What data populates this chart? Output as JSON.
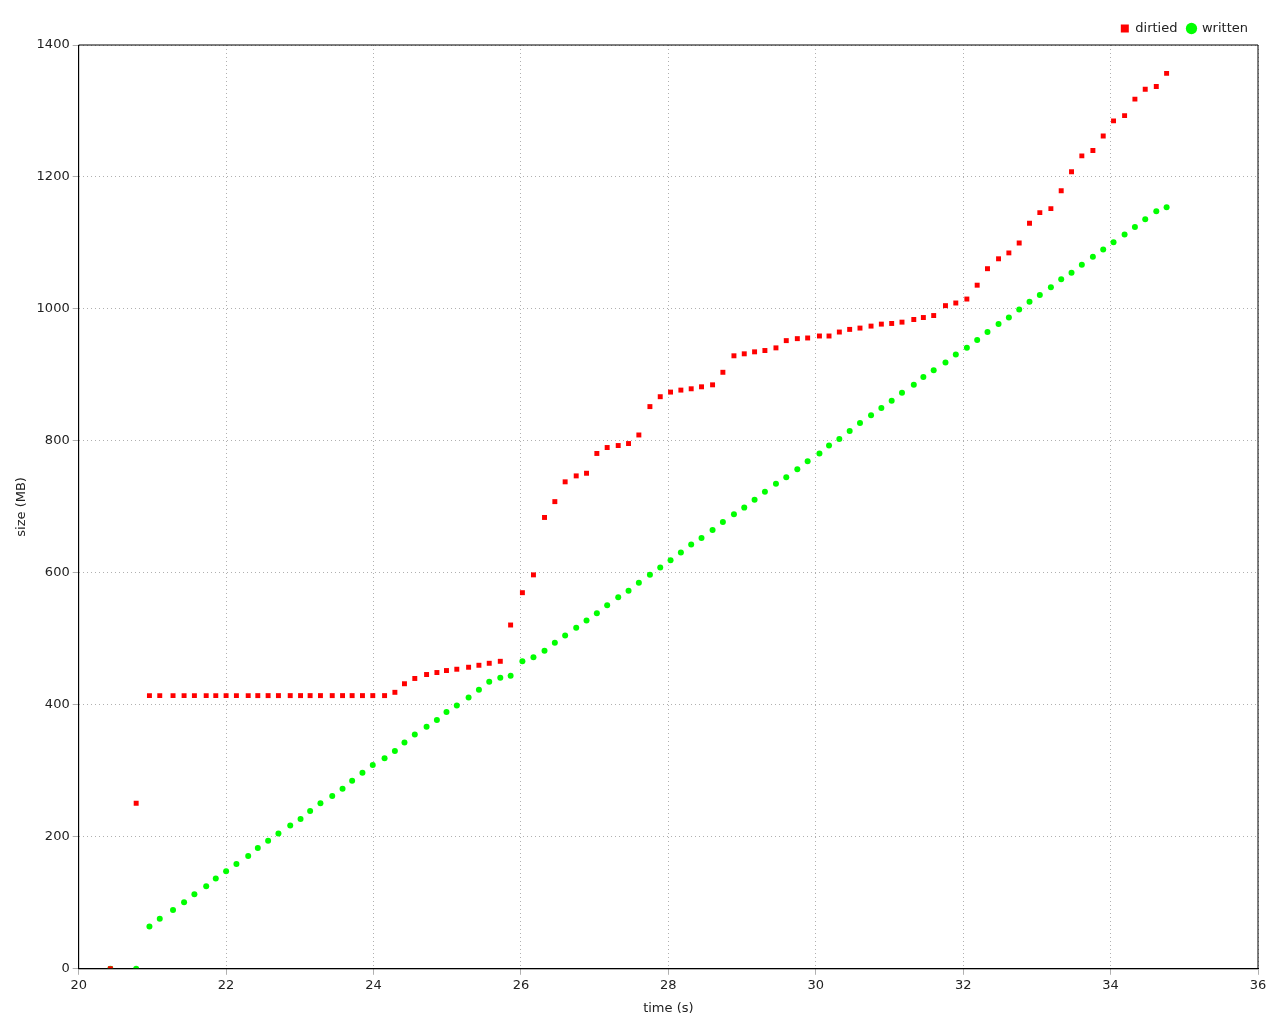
{
  "chart_data": {
    "type": "scatter",
    "xlabel": "time (s)",
    "ylabel": "size (MB)",
    "x": [
      20.43,
      20.78,
      20.96,
      21.1,
      21.28,
      21.43,
      21.57,
      21.73,
      21.86,
      22.0,
      22.14,
      22.3,
      22.43,
      22.57,
      22.71,
      22.87,
      23.01,
      23.14,
      23.28,
      23.44,
      23.58,
      23.71,
      23.85,
      23.99,
      24.15,
      24.29,
      24.42,
      24.56,
      24.72,
      24.86,
      24.99,
      25.13,
      25.29,
      25.43,
      25.57,
      25.72,
      25.86,
      26.02,
      26.17,
      26.32,
      26.46,
      26.6,
      26.75,
      26.89,
      27.03,
      27.17,
      27.32,
      27.46,
      27.6,
      27.75,
      27.89,
      28.03,
      28.17,
      28.31,
      28.45,
      28.6,
      28.74,
      28.89,
      29.03,
      29.17,
      29.31,
      29.46,
      29.6,
      29.75,
      29.89,
      30.05,
      30.18,
      30.32,
      30.46,
      30.6,
      30.75,
      30.89,
      31.03,
      31.17,
      31.33,
      31.46,
      31.6,
      31.76,
      31.9,
      32.05,
      32.19,
      32.33,
      32.48,
      32.62,
      32.76,
      32.9,
      33.04,
      33.19,
      33.33,
      33.47,
      33.61,
      33.76,
      33.9,
      34.04,
      34.19,
      34.33,
      34.47,
      34.62,
      34.76
    ],
    "series": [
      {
        "name": "dirtied",
        "color": "#ff0000",
        "marker": "square",
        "values": [
          0,
          251,
          414,
          414,
          414,
          414,
          414,
          414,
          414,
          414,
          414,
          414,
          414,
          414,
          414,
          414,
          414,
          414,
          414,
          414,
          414,
          414,
          414,
          414,
          414,
          419,
          432,
          440,
          446,
          449,
          452,
          454,
          457,
          460,
          463,
          466,
          521,
          570,
          597,
          684,
          708,
          738,
          747,
          751,
          781,
          790,
          793,
          796,
          809,
          852,
          867,
          874,
          877,
          879,
          882,
          885,
          904,
          929,
          932,
          935,
          937,
          941,
          952,
          955,
          956,
          959,
          959,
          965,
          969,
          971,
          974,
          977,
          978,
          980,
          984,
          987,
          990,
          1005,
          1009,
          1015,
          1036,
          1061,
          1076,
          1085,
          1100,
          1130,
          1146,
          1152,
          1179,
          1208,
          1232,
          1240,
          1262,
          1285,
          1293,
          1318,
          1333,
          1337,
          1357
        ]
      },
      {
        "name": "written",
        "color": "#00ff00",
        "marker": "circle",
        "values": [
          0,
          0,
          64,
          76,
          89,
          101,
          113,
          125,
          137,
          148,
          159,
          171,
          183,
          194,
          205,
          217,
          227,
          239,
          251,
          262,
          273,
          285,
          297,
          309,
          319,
          330,
          343,
          355,
          367,
          377,
          389,
          399,
          411,
          423,
          435,
          441,
          444,
          466,
          472,
          482,
          494,
          505,
          517,
          528,
          539,
          551,
          563,
          573,
          585,
          597,
          608,
          619,
          631,
          643,
          653,
          665,
          677,
          689,
          699,
          711,
          723,
          735,
          745,
          757,
          769,
          781,
          793,
          803,
          815,
          827,
          839,
          850,
          861,
          873,
          885,
          897,
          907,
          919,
          931,
          941,
          953,
          965,
          977,
          987,
          999,
          1011,
          1021,
          1033,
          1045,
          1055,
          1067,
          1079,
          1090,
          1101,
          1113,
          1124,
          1136,
          1148,
          1154
        ]
      }
    ],
    "xlim": [
      20,
      36
    ],
    "xticks": [
      20,
      22,
      24,
      26,
      28,
      30,
      32,
      34,
      36
    ],
    "ylim": [
      0,
      1400
    ],
    "yticks": [
      0,
      200,
      400,
      600,
      800,
      1000,
      1200,
      1400
    ],
    "grid": true,
    "legend": "top right"
  }
}
